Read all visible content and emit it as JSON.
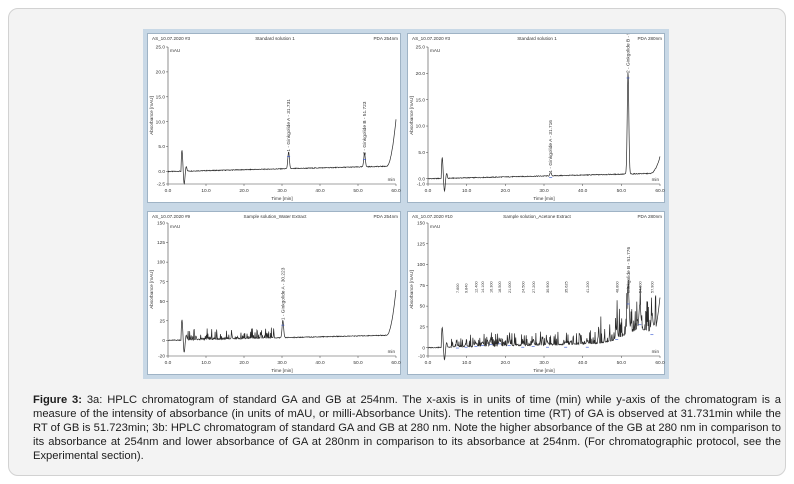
{
  "caption": {
    "label": "Figure 3:",
    "text": " 3a: HPLC chromatogram of standard GA and GB at 254nm. The x-axis is in units of time (min) while y-axis of the chromatogram is a measure of the intensity of absorbance (in units of mAU, or milli-Absorbance Units). The retention time (RT) of GA is observed at 31.731min while the RT of GB is 51.723min; 3b: HPLC chromatogram of standard GA and GB at 280 nm. Note the higher absorbance of the GB at 280 nm in comparison to its absorbance at 254nm and lower absorbance of GA at 280nm in comparison to its absorbance at 254nm. (For chromatographic protocol, see the Experimental section)."
  },
  "colors": {
    "trace": "#2a2a2a",
    "peak_marker": "#2d4fd0",
    "panel_bg": "#c8d8e6",
    "frame_bg": "#f3f3f3"
  },
  "chart_data": [
    {
      "type": "line",
      "panel": "standard-254",
      "header_left": "AS_10.07.2020 #3",
      "title": "Standard solution 1",
      "header_right": "PDA 254nm",
      "unit": "mAU",
      "xlabel": "Time [min]",
      "ylabel": "Absorbance [mAU]",
      "end_label": "min",
      "xlim": [
        0,
        60
      ],
      "ylim": [
        -2.5,
        25
      ],
      "yticks": [
        "25.0",
        "20.0",
        "15.0",
        "10.0",
        "5.0",
        "0.0",
        "-2.5"
      ],
      "xticks": [
        "0.0",
        "10.0",
        "20.0",
        "30.0",
        "40.0",
        "50.0",
        "60.0"
      ],
      "peaks": [
        {
          "rt": 31.731,
          "height": 3.4,
          "label": "1 - Ginkgolide A - 31.731"
        },
        {
          "rt": 51.723,
          "height": 2.8,
          "label": "2 - Ginkgolide B - 51.723"
        }
      ]
    },
    {
      "type": "line",
      "panel": "standard-280",
      "header_left": "AS_10.07.2020 #3",
      "title": "Standard solution 1",
      "header_right": "PDA 280nm",
      "unit": "mAU",
      "xlabel": "Time [min]",
      "ylabel": "Absorbance [mAU]",
      "end_label": "min",
      "xlim": [
        0,
        60
      ],
      "ylim": [
        -1.0,
        25
      ],
      "yticks": [
        "25.0",
        "20.0",
        "15.0",
        "10.0",
        "5.0",
        "0.0",
        "-1.0"
      ],
      "xticks": [
        "0.0",
        "10.0",
        "20.0",
        "30.0",
        "40.0",
        "50.0",
        "60.0"
      ],
      "peaks": [
        {
          "rt": 31.716,
          "height": 0.6,
          "label": "1 - Ginkgolide A - 31.716"
        },
        {
          "rt": 51.731,
          "height": 19.5,
          "label": "2 - Ginkgolide B - 51.731"
        }
      ]
    },
    {
      "type": "line",
      "panel": "sample-water",
      "header_left": "AS_10.07.2020 #9",
      "title": "Sample solution_Water Extract",
      "header_right": "PDA 254nm",
      "unit": "mAU",
      "xlabel": "Time [min]",
      "ylabel": "Absorbance [mAU]",
      "end_label": "min",
      "xlim": [
        0,
        60
      ],
      "ylim": [
        -20,
        150
      ],
      "yticks": [
        "150",
        "125",
        "100",
        "75",
        "50",
        "25",
        "0",
        "-20"
      ],
      "xticks": [
        "0.0",
        "10.0",
        "20.0",
        "30.0",
        "40.0",
        "50.0",
        "60.0"
      ],
      "peaks": [
        {
          "rt": 30.223,
          "height": 22,
          "label": "1 - Ginkgolide A - 30.223"
        }
      ]
    },
    {
      "type": "line",
      "panel": "sample-acetone",
      "header_left": "AS_10.07.2020 #10",
      "title": "Sample solution_Acetone Extract",
      "header_right": "PDA 280nm",
      "unit": "mAU",
      "xlabel": "Time [min]",
      "ylabel": "Absorbance [mAU]",
      "end_label": "min",
      "xlim": [
        0,
        60
      ],
      "ylim": [
        -10,
        150
      ],
      "yticks": [
        "150",
        "125",
        "100",
        "75",
        "50",
        "25",
        "0",
        "-10"
      ],
      "xticks": [
        "0.0",
        "10.0",
        "20.0",
        "30.0",
        "40.0",
        "50.0",
        "60.0"
      ],
      "peaks": [
        {
          "rt": 51.776,
          "height": 55,
          "label": "Ginkgolide B - 51.776"
        },
        {
          "rt": 7.6,
          "height": 2,
          "label": "7.600"
        },
        {
          "rt": 9.84,
          "height": 3,
          "label": "9.840"
        },
        {
          "rt": 12.4,
          "height": 4,
          "label": "12.400"
        },
        {
          "rt": 14.1,
          "height": 5,
          "label": "14.100"
        },
        {
          "rt": 16.3,
          "height": 6,
          "label": "16.300"
        },
        {
          "rt": 18.5,
          "height": 7,
          "label": "18.500"
        },
        {
          "rt": 21.0,
          "height": 5,
          "label": "21.000"
        },
        {
          "rt": 24.5,
          "height": 3,
          "label": "24.500"
        },
        {
          "rt": 27.2,
          "height": 4,
          "label": "27.200"
        },
        {
          "rt": 30.9,
          "height": 3,
          "label": "30.900"
        },
        {
          "rt": 35.6,
          "height": 3,
          "label": "35.625"
        },
        {
          "rt": 41.2,
          "height": 3,
          "label": "41.200"
        },
        {
          "rt": 48.8,
          "height": 12,
          "label": "48.800"
        },
        {
          "rt": 54.8,
          "height": 30,
          "label": "54.800"
        },
        {
          "rt": 57.9,
          "height": 18,
          "label": "57.900"
        }
      ]
    }
  ]
}
